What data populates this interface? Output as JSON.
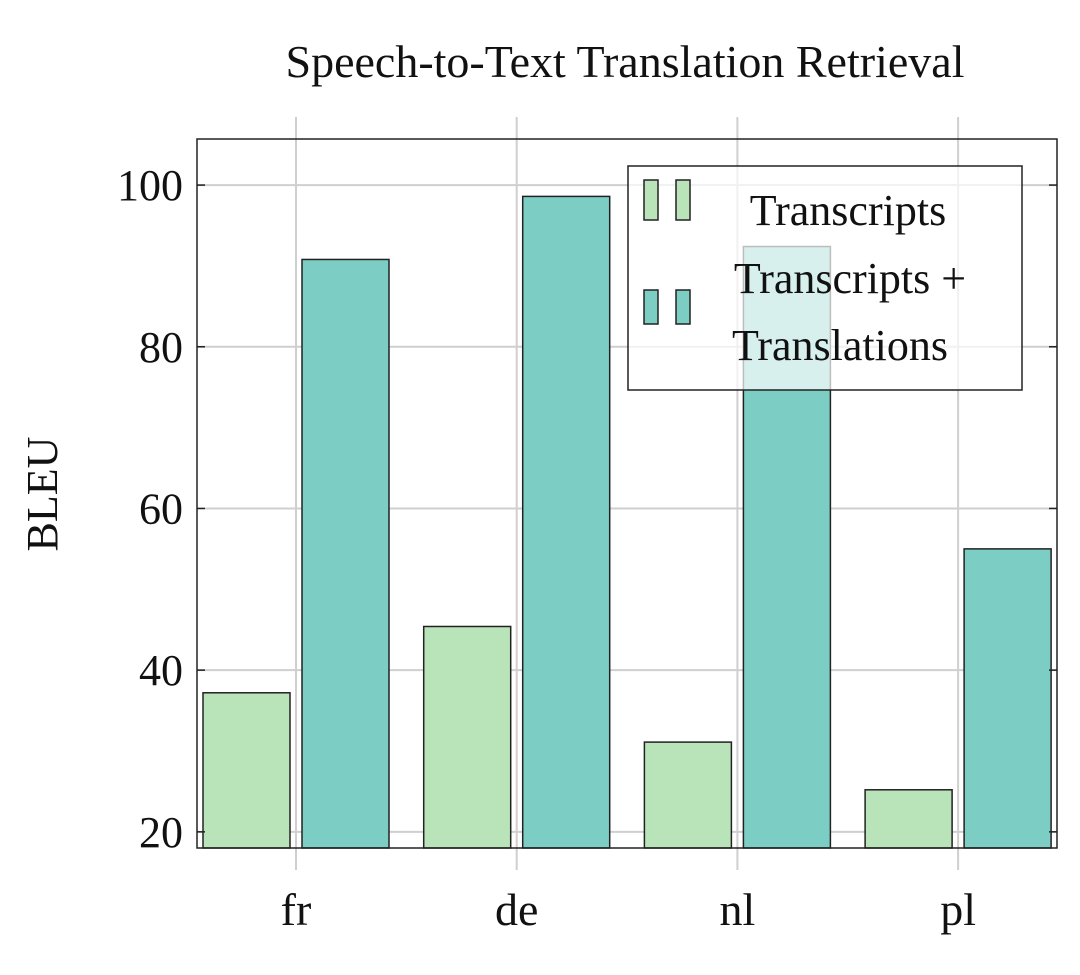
{
  "chart_data": {
    "type": "bar",
    "title": "Speech-to-Text Translation Retrieval",
    "xlabel": "",
    "ylabel": "BLEU",
    "categories": [
      "fr",
      "de",
      "nl",
      "pl"
    ],
    "series": [
      {
        "name": "Transcripts",
        "values": [
          37.2,
          45.4,
          31.1,
          25.2
        ],
        "color": "#b9e4b9"
      },
      {
        "name": "Transcripts + Translations",
        "legend_lines": [
          "Transcripts +",
          "Translations"
        ],
        "values": [
          90.8,
          98.6,
          92.4,
          55.0
        ],
        "color": "#7ccdc4"
      }
    ],
    "ylim": [
      18,
      105.7
    ],
    "yticks": [
      20,
      40,
      60,
      80,
      100
    ],
    "grid": true,
    "legend": "top-right"
  }
}
